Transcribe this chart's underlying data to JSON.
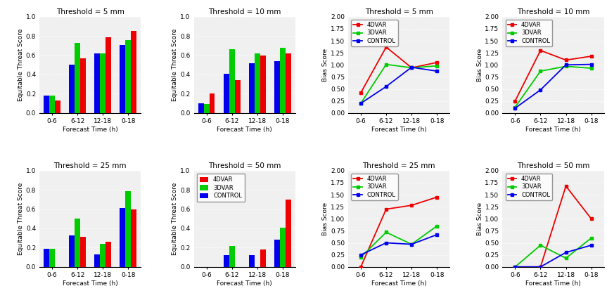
{
  "ets_titles": [
    "Threshold = 5 mm",
    "Threshold = 10 mm",
    "Threshold = 25 mm",
    "Threshold = 50 mm"
  ],
  "bias_titles": [
    "Threshold = 5 mm",
    "Threshold = 10 mm",
    "Threshold = 25 mm",
    "Threshold = 50 mm"
  ],
  "x_labels": [
    "0-6",
    "6-12",
    "12-18",
    "0-18"
  ],
  "xlabel": "Forecast Time (h)",
  "ets_ylabel": "Equitable Threat Score",
  "bias_ylabel": "Bias Score",
  "bar_colors": {
    "4DVAR": "#ee0000",
    "3DVAR": "#00cc00",
    "CONTROL": "#0000ee"
  },
  "line_colors": {
    "4DVAR": "#ee0000",
    "3DVAR": "#00cc00",
    "CONTROL": "#0000ee"
  },
  "ets_data": {
    "5mm": {
      "CONTROL": [
        0.18,
        0.5,
        0.62,
        0.71
      ],
      "3DVAR": [
        0.18,
        0.73,
        0.62,
        0.76
      ],
      "4DVAR": [
        0.13,
        0.57,
        0.79,
        0.85
      ]
    },
    "10mm": {
      "CONTROL": [
        0.1,
        0.41,
        0.52,
        0.54
      ],
      "3DVAR": [
        0.09,
        0.66,
        0.62,
        0.68
      ],
      "4DVAR": [
        0.2,
        0.34,
        0.6,
        0.62
      ]
    },
    "25mm": {
      "CONTROL": [
        0.19,
        0.33,
        0.13,
        0.61
      ],
      "3DVAR": [
        0.19,
        0.5,
        0.24,
        0.79
      ],
      "4DVAR": [
        0.0,
        0.31,
        0.26,
        0.6
      ]
    },
    "50mm": {
      "CONTROL": [
        0.0,
        0.12,
        0.12,
        0.28
      ],
      "3DVAR": [
        0.0,
        0.22,
        0.0,
        0.41
      ],
      "4DVAR": [
        0.0,
        0.0,
        0.18,
        0.7
      ]
    }
  },
  "bias_data": {
    "5mm": {
      "4DVAR": [
        0.42,
        1.37,
        0.94,
        1.05
      ],
      "3DVAR": [
        0.2,
        1.01,
        0.94,
        0.98
      ],
      "CONTROL": [
        0.2,
        0.55,
        0.95,
        0.87
      ]
    },
    "10mm": {
      "4DVAR": [
        0.25,
        1.3,
        1.1,
        1.18
      ],
      "3DVAR": [
        0.12,
        0.87,
        0.97,
        0.93
      ],
      "CONTROL": [
        0.1,
        0.48,
        1.0,
        1.01
      ]
    },
    "25mm": {
      "4DVAR": [
        0.0,
        1.2,
        1.28,
        1.45
      ],
      "3DVAR": [
        0.2,
        0.72,
        0.47,
        0.85
      ],
      "CONTROL": [
        0.25,
        0.5,
        0.47,
        0.67
      ]
    },
    "50mm": {
      "4DVAR": [
        0.0,
        0.0,
        1.68,
        1.0
      ],
      "3DVAR": [
        0.0,
        0.45,
        0.18,
        0.6
      ],
      "CONTROL": [
        0.0,
        0.0,
        0.3,
        0.45
      ]
    }
  },
  "ets_ylim": [
    0.0,
    1.0
  ],
  "bias_ylim": [
    0.0,
    2.0
  ],
  "ets_yticks": [
    0.0,
    0.2,
    0.4,
    0.6,
    0.8,
    1.0
  ],
  "bias_yticks": [
    0.0,
    0.25,
    0.5,
    0.75,
    1.0,
    1.25,
    1.5,
    1.75,
    2.0
  ],
  "legend_order": [
    "4DVAR",
    "3DVAR",
    "CONTROL"
  ],
  "bg_color": "#f0f0f0"
}
